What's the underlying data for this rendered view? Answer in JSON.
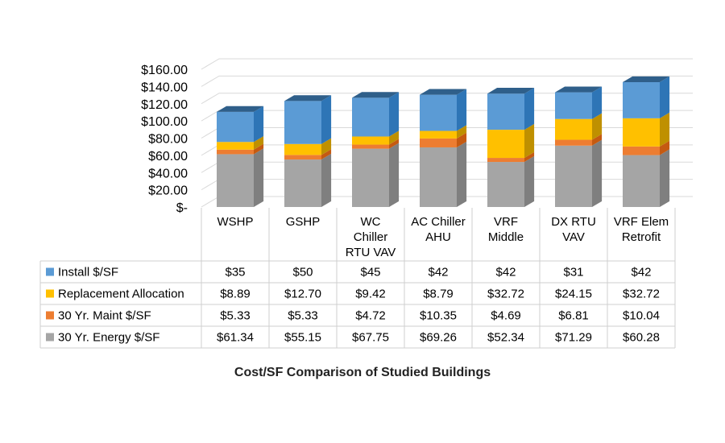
{
  "caption": "Cost/SF Comparison of Studied Buildings",
  "chart_data": {
    "type": "bar",
    "stacked": true,
    "three_d": true,
    "categories": [
      [
        "WSHP"
      ],
      [
        "GSHP"
      ],
      [
        "WC",
        "Chiller",
        "RTU VAV"
      ],
      [
        "AC Chiller",
        "AHU"
      ],
      [
        "VRF",
        "Middle"
      ],
      [
        "DX RTU",
        "VAV"
      ],
      [
        "VRF Elem",
        "Retrofit"
      ]
    ],
    "ylim": [
      0,
      160
    ],
    "y_ticks": [
      "$-",
      "$20.00",
      "$40.00",
      "$60.00",
      "$80.00",
      "$100.00",
      "$120.00",
      "$140.00",
      "$160.00"
    ],
    "grid": true,
    "series": [
      {
        "name": "30 Yr. Energy $/SF",
        "color": "#a5a5a5",
        "side": "#7f7f7f",
        "top": "#c9c9c9",
        "values": [
          61.34,
          55.15,
          67.75,
          69.26,
          52.34,
          71.29,
          60.28
        ],
        "labels": [
          "$61.34",
          "$55.15",
          "$67.75",
          "$69.26",
          "$52.34",
          "$71.29",
          "$60.28"
        ]
      },
      {
        "name": "30 Yr. Maint $/SF",
        "color": "#ed7d31",
        "side": "#c55a11",
        "top": "#f4b183",
        "values": [
          5.33,
          5.33,
          4.72,
          10.35,
          4.69,
          6.81,
          10.04
        ],
        "labels": [
          "$5.33",
          "$5.33",
          "$4.72",
          "$10.35",
          "$4.69",
          "$6.81",
          "$10.04"
        ]
      },
      {
        "name": "Replacement Allocation",
        "color": "#ffc000",
        "side": "#bf9000",
        "top": "#ffd966",
        "values": [
          8.89,
          12.7,
          9.42,
          8.79,
          32.72,
          24.15,
          32.72
        ],
        "labels": [
          "$8.89",
          "$12.70",
          "$9.42",
          "$8.79",
          "$32.72",
          "$24.15",
          "$32.72"
        ]
      },
      {
        "name": "Install $/SF",
        "color": "#5b9bd5",
        "side": "#2e75b6",
        "top": "#2f5f8a",
        "values": [
          35,
          50,
          45,
          42,
          42,
          31,
          42
        ],
        "labels": [
          "$35",
          "$50",
          "$45",
          "$42",
          "$42",
          "$31",
          "$42"
        ]
      }
    ],
    "table_row_order": [
      "Install $/SF",
      "Replacement Allocation",
      "30 Yr. Maint $/SF",
      "30 Yr. Energy $/SF"
    ]
  }
}
